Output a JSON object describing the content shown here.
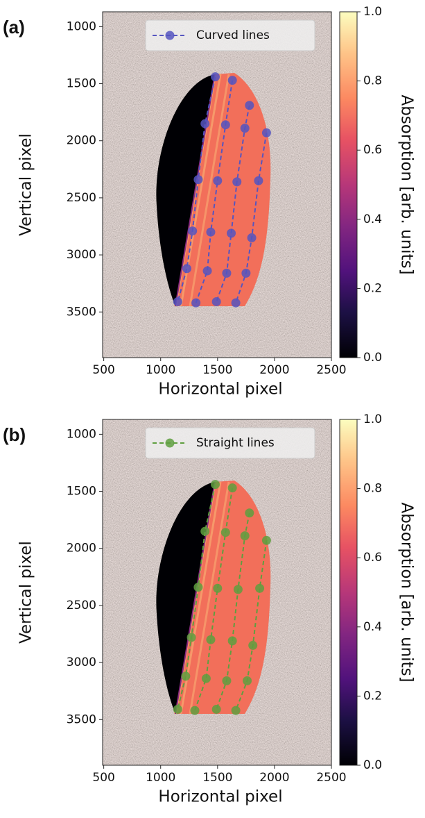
{
  "chart_data": [
    {
      "type": "scatter",
      "panel_label": "(a)",
      "xlabel": "Horizontal pixel",
      "ylabel": "Vertical pixel",
      "xlim": [
        490,
        2500
      ],
      "ylim": [
        3900,
        870
      ],
      "xticks": [
        500,
        1000,
        1500,
        2000,
        2500
      ],
      "yticks": [
        1000,
        1500,
        2000,
        2500,
        3000,
        3500
      ],
      "colorbar": {
        "label": "Absorption [arb. units]",
        "clim": [
          0,
          1
        ],
        "ticks": [
          {
            "value": 0,
            "label": "0.0"
          },
          {
            "value": 0.2,
            "label": "0.2"
          },
          {
            "value": 0.4,
            "label": "0.4"
          },
          {
            "value": 0.6,
            "label": "0.6"
          },
          {
            "value": 0.8,
            "label": "0.8"
          },
          {
            "value": 1,
            "label": "1.0"
          }
        ]
      },
      "series": [
        {
          "name": "Curved lines",
          "color": "#5555c0",
          "lines": [
            {
              "x": [
                1480,
                1390,
                1330,
                1280,
                1230,
                1150
              ],
              "values": [
                1440,
                1850,
                2340,
                2790,
                3120,
                3410
              ]
            },
            {
              "x": [
                1630,
                1570,
                1500,
                1440,
                1410,
                1310
              ],
              "values": [
                1470,
                1860,
                2350,
                2800,
                3140,
                3420
              ]
            },
            {
              "x": [
                1780,
                1740,
                1670,
                1620,
                1580,
                1490
              ],
              "values": [
                1690,
                1890,
                2360,
                2810,
                3160,
                3410
              ]
            },
            {
              "x": [
                1930,
                1860,
                1800,
                1750,
                1660
              ],
              "values": [
                1930,
                2350,
                2850,
                3160,
                3420
              ]
            }
          ]
        }
      ]
    },
    {
      "type": "scatter",
      "panel_label": "(b)",
      "xlabel": "Horizontal pixel",
      "ylabel": "Vertical pixel",
      "xlim": [
        490,
        2500
      ],
      "ylim": [
        3900,
        870
      ],
      "xticks": [
        500,
        1000,
        1500,
        2000,
        2500
      ],
      "yticks": [
        1000,
        1500,
        2000,
        2500,
        3000,
        3500
      ],
      "colorbar": {
        "label": "Absorption [arb. units]",
        "clim": [
          0,
          1
        ],
        "ticks": [
          {
            "value": 0,
            "label": "0.0"
          },
          {
            "value": 0.2,
            "label": "0.2"
          },
          {
            "value": 0.4,
            "label": "0.4"
          },
          {
            "value": 0.6,
            "label": "0.6"
          },
          {
            "value": 0.8,
            "label": "0.8"
          },
          {
            "value": 1,
            "label": "1.0"
          }
        ]
      },
      "series": [
        {
          "name": "Straight lines",
          "color": "#5f9f3f",
          "lines": [
            {
              "x": [
                1480,
                1390,
                1330,
                1270,
                1220,
                1150
              ],
              "values": [
                1440,
                1850,
                2340,
                2780,
                3120,
                3410
              ]
            },
            {
              "x": [
                1630,
                1570,
                1500,
                1440,
                1400,
                1300
              ],
              "values": [
                1470,
                1860,
                2350,
                2800,
                3140,
                3420
              ]
            },
            {
              "x": [
                1780,
                1740,
                1680,
                1630,
                1580,
                1490
              ],
              "values": [
                1690,
                1890,
                2360,
                2810,
                3160,
                3410
              ]
            },
            {
              "x": [
                1930,
                1870,
                1810,
                1760,
                1660
              ],
              "values": [
                1930,
                2350,
                2850,
                3160,
                3420
              ]
            }
          ]
        }
      ]
    }
  ]
}
